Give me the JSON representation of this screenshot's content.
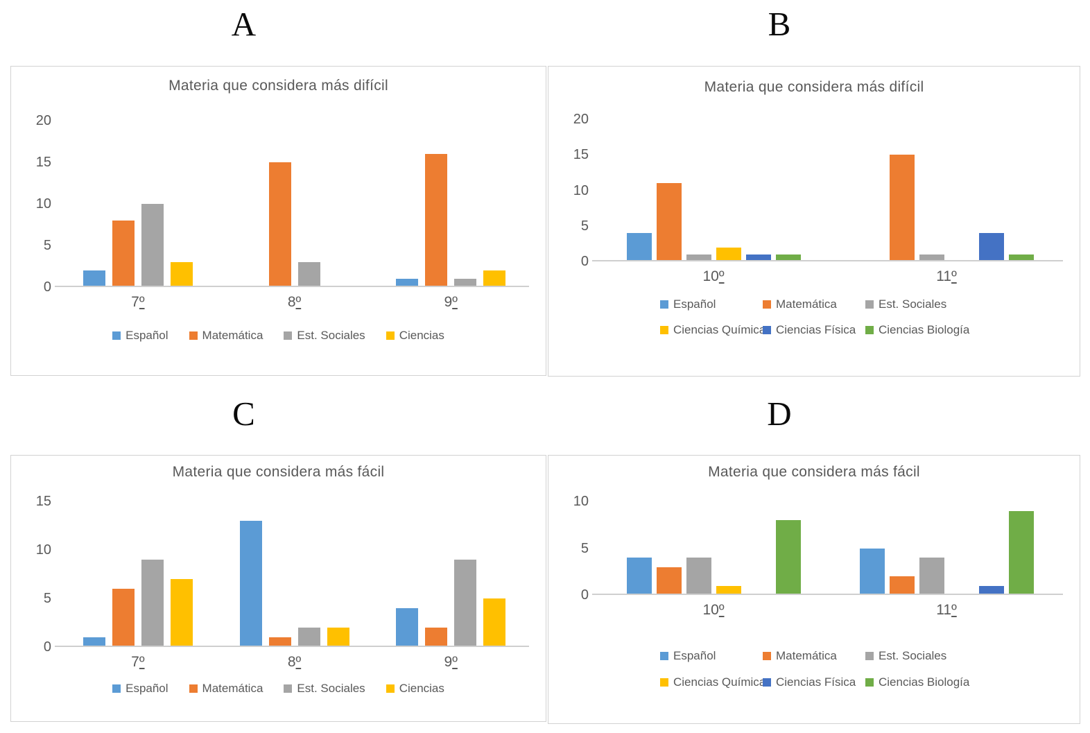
{
  "panels": [
    {
      "label": "A"
    },
    {
      "label": "B"
    },
    {
      "label": "C"
    },
    {
      "label": "D"
    }
  ],
  "palette": {
    "espanol": "#5B9BD5",
    "matematica": "#ED7D31",
    "est_sociales": "#A5A5A5",
    "ciencias": "#FFC000",
    "ciencias_quimica": "#FFC000",
    "ciencias_fisica": "#4472C4",
    "ciencias_biologia": "#70AD47",
    "text_gray": "#595959",
    "axis_line": "#CFCFCF"
  },
  "chart_data": [
    {
      "id": "A",
      "type": "bar",
      "title": "Materia que considera más difícil",
      "categories": [
        "7º",
        "8º",
        "9º"
      ],
      "series": [
        {
          "name": "Español",
          "color": "#5B9BD5",
          "values": [
            2,
            0,
            1
          ]
        },
        {
          "name": "Matemática",
          "color": "#ED7D31",
          "values": [
            8,
            15,
            16
          ]
        },
        {
          "name": "Est. Sociales",
          "color": "#A5A5A5",
          "values": [
            10,
            3,
            1
          ]
        },
        {
          "name": "Ciencias",
          "color": "#FFC000",
          "values": [
            3,
            0,
            2
          ]
        }
      ],
      "yticks": [
        0,
        5,
        10,
        15,
        20
      ],
      "ylim": [
        0,
        20
      ],
      "grid": false,
      "legend_position": "bottom",
      "legend_rows": 1
    },
    {
      "id": "B",
      "type": "bar",
      "title": "Materia que considera más difícil",
      "categories": [
        "10º",
        "11º"
      ],
      "series": [
        {
          "name": "Español",
          "color": "#5B9BD5",
          "values": [
            4,
            0
          ]
        },
        {
          "name": "Matemática",
          "color": "#ED7D31",
          "values": [
            11,
            15
          ]
        },
        {
          "name": "Est. Sociales",
          "color": "#A5A5A5",
          "values": [
            1,
            1
          ]
        },
        {
          "name": "Ciencias Química",
          "color": "#FFC000",
          "values": [
            2,
            0
          ]
        },
        {
          "name": "Ciencias Física",
          "color": "#4472C4",
          "values": [
            1,
            4
          ]
        },
        {
          "name": "Ciencias Biología",
          "color": "#70AD47",
          "values": [
            1,
            1
          ]
        }
      ],
      "yticks": [
        0,
        5,
        10,
        15,
        20
      ],
      "ylim": [
        0,
        20
      ],
      "grid": false,
      "legend_position": "bottom",
      "legend_rows": 2
    },
    {
      "id": "C",
      "type": "bar",
      "title": "Materia que considera más fácil",
      "categories": [
        "7º",
        "8º",
        "9º"
      ],
      "series": [
        {
          "name": "Español",
          "color": "#5B9BD5",
          "values": [
            1,
            13,
            4
          ]
        },
        {
          "name": "Matemática",
          "color": "#ED7D31",
          "values": [
            6,
            1,
            2
          ]
        },
        {
          "name": "Est. Sociales",
          "color": "#A5A5A5",
          "values": [
            9,
            2,
            9
          ]
        },
        {
          "name": "Ciencias",
          "color": "#FFC000",
          "values": [
            7,
            2,
            5
          ]
        }
      ],
      "yticks": [
        0,
        5,
        10,
        15
      ],
      "ylim": [
        0,
        15
      ],
      "grid": false,
      "legend_position": "bottom",
      "legend_rows": 1
    },
    {
      "id": "D",
      "type": "bar",
      "title": "Materia que considera más fácil",
      "categories": [
        "10º",
        "11º"
      ],
      "series": [
        {
          "name": "Español",
          "color": "#5B9BD5",
          "values": [
            4,
            5
          ]
        },
        {
          "name": "Matemática",
          "color": "#ED7D31",
          "values": [
            3,
            2
          ]
        },
        {
          "name": "Est. Sociales",
          "color": "#A5A5A5",
          "values": [
            4,
            4
          ]
        },
        {
          "name": "Ciencias Química",
          "color": "#FFC000",
          "values": [
            1,
            0
          ]
        },
        {
          "name": "Ciencias Física",
          "color": "#4472C4",
          "values": [
            0,
            1
          ]
        },
        {
          "name": "Ciencias Biología",
          "color": "#70AD47",
          "values": [
            8,
            9
          ]
        }
      ],
      "yticks": [
        0,
        5,
        10
      ],
      "ylim": [
        0,
        10
      ],
      "grid": false,
      "legend_position": "bottom",
      "legend_rows": 2
    }
  ]
}
